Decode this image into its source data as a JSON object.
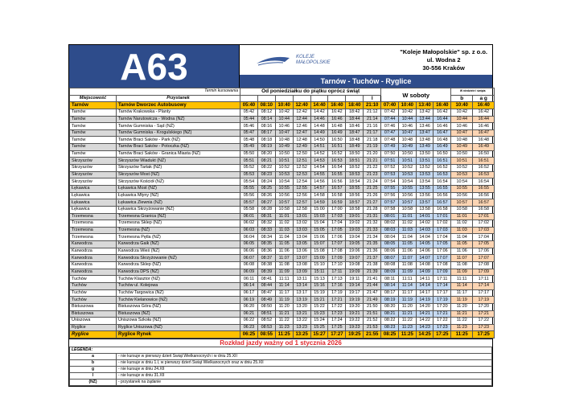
{
  "header": {
    "line": "A63",
    "logo_text_1": "KOLEJE",
    "logo_text_2": "MAŁOPOLSKIE",
    "company": "\"Koleje Małopolskie\" sp. z o.o.",
    "street": "ul. Wodna 2",
    "city": "30-556 Kraków",
    "route": "Tarnów - Tuchów - Ryglice"
  },
  "columns": {
    "termin": "Termin kursowania",
    "weekdays": "Od poniedziałku do piątku oprócz świąt",
    "saturdays": "W soboty",
    "sundays": "W niedziele i święta",
    "place": "Miejscowość",
    "stop": "Przystanek",
    "weekday_marks": [
      "",
      "",
      "",
      "",
      "",
      "",
      "",
      "l"
    ],
    "saturday_marks": [
      "",
      "",
      "",
      ""
    ],
    "sunday_marks": [
      "b",
      "a g"
    ]
  },
  "colors": {
    "header_blue": "#2e4c8b",
    "highlight": "#ffc000",
    "saturday": "#c5d9f1",
    "sunday": "#fcd5b4",
    "shade": "#d9d9d9",
    "validity": "#e0262b"
  },
  "rows": [
    {
      "place": "Tarnów",
      "stop": "Tarnów Dworzec Autobusowy",
      "times": [
        "05:40",
        "08:10",
        "10:40",
        "12:40",
        "14:40",
        "16:40",
        "18:40",
        "21:10",
        "07:40",
        "10:40",
        "13:40",
        "16:40",
        "10:40",
        "16:40"
      ]
    },
    {
      "place": "Tarnów",
      "stop": "Tarnów Krakowska - Planty",
      "times": [
        "05:42",
        "08:12",
        "10:42",
        "12:42",
        "14:42",
        "16:42",
        "18:42",
        "21:12",
        "07:42",
        "10:42",
        "13:42",
        "16:42",
        "10:42",
        "16:42"
      ]
    },
    {
      "place": "Tarnów",
      "stop": "Tarnów Narutowicza - Wodna (NŻ)",
      "times": [
        "05:44",
        "08:14",
        "10:44",
        "12:44",
        "14:46",
        "16:46",
        "18:44",
        "21:14",
        "07:44",
        "10:44",
        "13:44",
        "16:44",
        "10:44",
        "16:44"
      ]
    },
    {
      "place": "Tarnów",
      "stop": "Tarnów Gumniska - Sąd (NŻ)",
      "times": [
        "05:46",
        "08:16",
        "10:46",
        "12:46",
        "14:48",
        "16:48",
        "18:46",
        "21:16",
        "07:46",
        "10:46",
        "13:46",
        "16:46",
        "10:46",
        "16:46"
      ]
    },
    {
      "place": "Tarnów",
      "stop": "Tarnów Gumniska - Krogulskiego (NŻ)",
      "times": [
        "05:47",
        "08:17",
        "10:47",
        "12:47",
        "14:49",
        "16:49",
        "18:47",
        "21:17",
        "07:47",
        "10:47",
        "13:47",
        "16:47",
        "10:47",
        "16:47"
      ]
    },
    {
      "place": "Tarnów",
      "stop": "Tarnów Braci Saków - Park (NŻ)",
      "times": [
        "05:48",
        "08:18",
        "10:48",
        "12:48",
        "14:50",
        "16:50",
        "18:48",
        "21:18",
        "07:48",
        "10:48",
        "13:48",
        "16:48",
        "10:48",
        "16:48"
      ]
    },
    {
      "place": "Tarnów",
      "stop": "Tarnów Braci Saków - Potoczka (NŻ)",
      "times": [
        "05:49",
        "08:19",
        "10:49",
        "12:49",
        "14:51",
        "16:51",
        "18:49",
        "21:19",
        "07:49",
        "10:49",
        "13:49",
        "16:49",
        "10:49",
        "16:49"
      ]
    },
    {
      "place": "Tarnów",
      "stop": "Tarnów Braci Saków - Granica Miasta (NŻ)",
      "times": [
        "05:50",
        "08:20",
        "10:50",
        "12:50",
        "14:52",
        "16:52",
        "18:50",
        "21:20",
        "07:50",
        "10:50",
        "13:50",
        "16:50",
        "10:50",
        "16:50"
      ]
    },
    {
      "place": "Skrzyszów",
      "stop": "Skrzyszów Wiadukt (NŻ)",
      "times": [
        "05:51",
        "08:21",
        "10:51",
        "12:51",
        "14:53",
        "16:53",
        "18:51",
        "21:21",
        "07:51",
        "10:51",
        "13:51",
        "16:51",
        "10:51",
        "16:51"
      ]
    },
    {
      "place": "Skrzyszów",
      "stop": "Skrzyszów Tartak (NŻ)",
      "times": [
        "05:52",
        "08:22",
        "10:52",
        "12:52",
        "14:54",
        "16:54",
        "18:52",
        "21:22",
        "07:52",
        "10:52",
        "13:52",
        "16:52",
        "10:52",
        "16:52"
      ]
    },
    {
      "place": "Skrzyszów",
      "stop": "Skrzyszów Most (NŻ)",
      "times": [
        "05:53",
        "08:23",
        "10:53",
        "12:53",
        "14:55",
        "16:55",
        "18:53",
        "21:23",
        "07:53",
        "10:53",
        "13:53",
        "16:53",
        "10:53",
        "16:53"
      ]
    },
    {
      "place": "Skrzyszów",
      "stop": "Skrzyszów Kościół (NŻ)",
      "times": [
        "05:54",
        "08:24",
        "10:54",
        "12:54",
        "14:56",
        "16:56",
        "18:54",
        "21:24",
        "07:54",
        "10:54",
        "13:54",
        "16:54",
        "10:54",
        "16:54"
      ]
    },
    {
      "place": "Łękawica",
      "stop": "Łękawica Most (NŻ)",
      "times": [
        "05:55",
        "08:25",
        "10:55",
        "12:55",
        "14:57",
        "16:57",
        "18:55",
        "21:25",
        "07:55",
        "10:55",
        "13:55",
        "16:55",
        "10:55",
        "16:55"
      ]
    },
    {
      "place": "Łękawica",
      "stop": "Łękawica Młyny (NŻ)",
      "times": [
        "05:56",
        "08:26",
        "10:56",
        "12:56",
        "14:58",
        "16:58",
        "18:56",
        "21:26",
        "07:56",
        "10:56",
        "13:56",
        "16:56",
        "10:56",
        "16:56"
      ]
    },
    {
      "place": "Łękawica",
      "stop": "Łękawica Zlewnia (NŻ)",
      "times": [
        "05:57",
        "08:27",
        "10:57",
        "12:57",
        "14:59",
        "16:59",
        "18:57",
        "21:27",
        "07:57",
        "10:57",
        "13:57",
        "16:57",
        "10:57",
        "16:57"
      ]
    },
    {
      "place": "Łękawica",
      "stop": "Łękawica Skrzyżowanie (NŻ)",
      "times": [
        "05:58",
        "08:28",
        "10:58",
        "12:58",
        "15:00",
        "17:00",
        "18:58",
        "21:28",
        "07:58",
        "10:58",
        "13:58",
        "16:58",
        "10:58",
        "16:58"
      ]
    },
    {
      "place": "Trzemesna",
      "stop": "Trzemesna Granica (NŻ)",
      "times": [
        "06:01",
        "08:31",
        "11:01",
        "13:01",
        "15:03",
        "17:03",
        "19:01",
        "21:31",
        "08:01",
        "11:01",
        "14:01",
        "17:01",
        "11:01",
        "17:01"
      ]
    },
    {
      "place": "Trzemesna",
      "stop": "Trzemesna Sklep (NŻ)",
      "times": [
        "06:02",
        "08:32",
        "11:02",
        "13:02",
        "15:04",
        "17:04",
        "19:02",
        "21:32",
        "08:02",
        "11:02",
        "14:02",
        "17:02",
        "11:02",
        "17:02"
      ]
    },
    {
      "place": "Trzemesna",
      "stop": "Trzemesna (NŻ)",
      "times": [
        "06:03",
        "08:33",
        "11:03",
        "13:03",
        "15:05",
        "17:05",
        "19:03",
        "21:33",
        "08:03",
        "11:03",
        "14:03",
        "17:03",
        "11:03",
        "17:03"
      ]
    },
    {
      "place": "Trzemesna",
      "stop": "Trzemesna Pętla (NŻ)",
      "times": [
        "06:04",
        "08:34",
        "11:04",
        "13:04",
        "15:06",
        "17:06",
        "19:04",
        "21:34",
        "08:04",
        "11:04",
        "14:04",
        "17:04",
        "11:04",
        "17:04"
      ]
    },
    {
      "place": "Karwodrza",
      "stop": "Karwodrza Gaik (NŻ)",
      "times": [
        "06:05",
        "08:35",
        "11:05",
        "13:05",
        "15:07",
        "17:07",
        "19:05",
        "21:35",
        "08:05",
        "11:05",
        "14:05",
        "17:05",
        "11:05",
        "17:05"
      ]
    },
    {
      "place": "Karwodrza",
      "stop": "Karwodrza Wieś (NŻ)",
      "times": [
        "06:06",
        "08:36",
        "11:06",
        "13:06",
        "15:08",
        "17:08",
        "19:06",
        "21:36",
        "08:06",
        "11:06",
        "14:06",
        "17:06",
        "11:06",
        "17:06"
      ]
    },
    {
      "place": "Karwodrza",
      "stop": "Karwodrza Skrzyżowanie (NŻ)",
      "times": [
        "06:07",
        "08:37",
        "11:07",
        "13:07",
        "15:09",
        "17:09",
        "19:07",
        "21:37",
        "08:07",
        "11:07",
        "14:07",
        "17:07",
        "11:07",
        "17:07"
      ]
    },
    {
      "place": "Karwodrza",
      "stop": "Karwodrza Sklep (NŻ)",
      "times": [
        "06:08",
        "08:38",
        "11:08",
        "13:08",
        "15:10",
        "17:10",
        "19:08",
        "21:38",
        "08:08",
        "11:08",
        "14:08",
        "17:08",
        "11:08",
        "17:08"
      ]
    },
    {
      "place": "Karwodrza",
      "stop": "Karwodrza DPS (NŻ)",
      "times": [
        "06:09",
        "08:39",
        "11:09",
        "13:09",
        "15:11",
        "17:11",
        "19:09",
        "21:39",
        "08:09",
        "11:09",
        "14:09",
        "17:09",
        "11:09",
        "17:09"
      ]
    },
    {
      "place": "Tuchów",
      "stop": "Tuchów Klasztor (NŻ)",
      "times": [
        "06:11",
        "08:41",
        "11:11",
        "13:11",
        "15:13",
        "17:13",
        "19:11",
        "21:41",
        "08:11",
        "11:11",
        "14:11",
        "17:11",
        "11:11",
        "17:11"
      ]
    },
    {
      "place": "Tuchów",
      "stop": "Tuchów ul. Kolejowa",
      "times": [
        "06:14",
        "08:44",
        "11:14",
        "13:14",
        "15:16",
        "17:16",
        "19:14",
        "21:44",
        "08:14",
        "11:14",
        "14:14",
        "17:14",
        "11:14",
        "17:14"
      ]
    },
    {
      "place": "Tuchów",
      "stop": "Tuchów Targowica (NŻ)",
      "times": [
        "06:17",
        "08:47",
        "11:17",
        "13:17",
        "15:19",
        "17:19",
        "19:17",
        "21:47",
        "08:17",
        "11:17",
        "14:17",
        "17:17",
        "11:17",
        "17:17"
      ]
    },
    {
      "place": "Tuchów",
      "stop": "Tuchów Kielanowice (NŻ)",
      "times": [
        "06:19",
        "08:49",
        "11:19",
        "13:19",
        "15:21",
        "17:21",
        "19:19",
        "21:49",
        "08:19",
        "11:19",
        "14:19",
        "17:19",
        "11:19",
        "17:19"
      ]
    },
    {
      "place": "Bistuszowa",
      "stop": "Bistuszowa Góra (NŻ)",
      "times": [
        "06:20",
        "08:50",
        "11:20",
        "13:20",
        "15:22",
        "17:22",
        "19:20",
        "21:50",
        "08:20",
        "11:20",
        "14:20",
        "17:20",
        "11:20",
        "17:20"
      ]
    },
    {
      "place": "Bistuszowa",
      "stop": "Bistuszowa (NŻ)",
      "times": [
        "06:21",
        "08:51",
        "11:21",
        "13:21",
        "15:23",
        "17:23",
        "19:21",
        "21:51",
        "08:21",
        "11:21",
        "14:21",
        "17:21",
        "11:21",
        "17:21"
      ]
    },
    {
      "place": "Uniszowa",
      "stop": "Uniszowa Szkoła (NŻ)",
      "times": [
        "06:22",
        "08:52",
        "11:22",
        "13:22",
        "15:24",
        "17:24",
        "19:22",
        "21:52",
        "08:22",
        "11:22",
        "14:22",
        "17:22",
        "11:22",
        "17:22"
      ]
    },
    {
      "place": "Ryglice",
      "stop": "Ryglice Uniszowa (NŻ)",
      "times": [
        "06:23",
        "08:53",
        "11:23",
        "13:23",
        "15:25",
        "17:25",
        "19:23",
        "21:53",
        "08:23",
        "11:23",
        "14:23",
        "17:23",
        "11:23",
        "17:23"
      ]
    },
    {
      "place": "Ryglice",
      "stop": "Ryglice Rynek",
      "times": [
        "06:25",
        "08:55",
        "11:25",
        "13:25",
        "15:27",
        "17:27",
        "19:25",
        "21:55",
        "08:25",
        "11:25",
        "14:25",
        "17:25",
        "11:25",
        "17:25"
      ]
    }
  ],
  "validity": "Rozkład jazdy ważny od 1 stycznia 2026",
  "legend": {
    "title": "LEGENDA:",
    "items": [
      {
        "key": "a",
        "text": "- nie kursuje w pierwszy dzień Świąt Wielkanocnych i w dniu 25.XII"
      },
      {
        "key": "b",
        "text": "- nie kursuje w dniu 1.I, w pierwszy dzień Świąt Wielkanocnych oraz w dniu 25.XII"
      },
      {
        "key": "g",
        "text": "- nie kursuje w dniu 24.XII"
      },
      {
        "key": "l",
        "text": "- nie kursuje w dniu 31.XII"
      },
      {
        "key": "(NŻ)",
        "text": "- przystanek na żądanie"
      }
    ]
  }
}
